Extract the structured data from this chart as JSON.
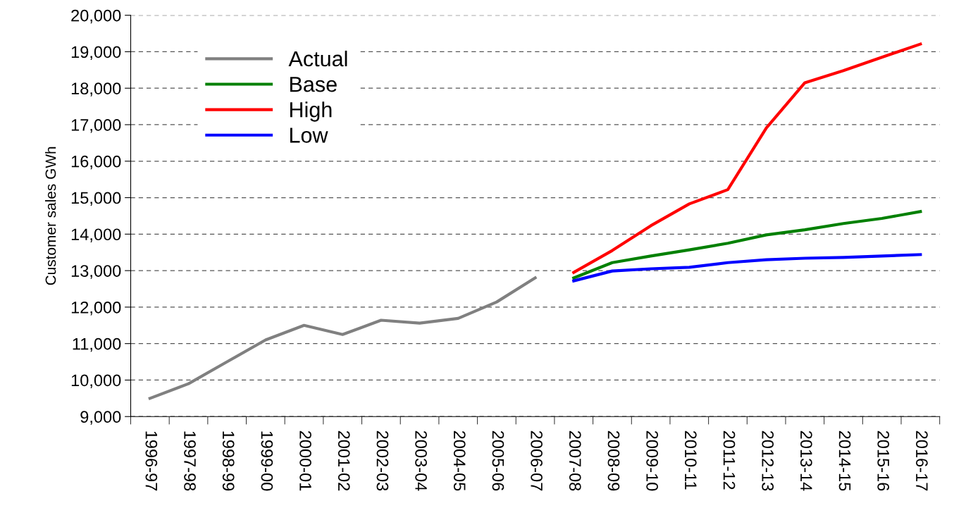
{
  "chart_data": {
    "type": "line",
    "ylabel": "Customer sales GWh",
    "categories": [
      "1996-97",
      "1997-98",
      "1998-99",
      "1999-00",
      "2000-01",
      "2001-02",
      "2002-03",
      "2003-04",
      "2004-05",
      "2005-06",
      "2006-07",
      "2007-08",
      "2008-09",
      "2009-10",
      "2010-11",
      "2011-12",
      "2012-13",
      "2013-14",
      "2014-15",
      "2015-16",
      "2016-17"
    ],
    "series": [
      {
        "name": "Actual",
        "color": "#808080",
        "values": [
          9500,
          9900,
          10500,
          11100,
          11500,
          11250,
          11640,
          11560,
          11690,
          12140,
          12800,
          null,
          null,
          null,
          null,
          null,
          null,
          null,
          null,
          null,
          null
        ]
      },
      {
        "name": "Base",
        "color": "#008000",
        "values": [
          null,
          null,
          null,
          null,
          null,
          null,
          null,
          null,
          null,
          null,
          null,
          12800,
          13220,
          13400,
          13570,
          13750,
          13980,
          14120,
          14290,
          14430,
          14620
        ]
      },
      {
        "name": "High",
        "color": "#ff0000",
        "values": [
          null,
          null,
          null,
          null,
          null,
          null,
          null,
          null,
          null,
          null,
          null,
          12950,
          13550,
          14230,
          14830,
          15220,
          16910,
          18150,
          18480,
          18850,
          19210
        ]
      },
      {
        "name": "Low",
        "color": "#0000ff",
        "values": [
          null,
          null,
          null,
          null,
          null,
          null,
          null,
          null,
          null,
          null,
          null,
          12720,
          12990,
          13050,
          13090,
          13220,
          13300,
          13340,
          13360,
          13400,
          13440
        ]
      }
    ],
    "ylim": [
      9000,
      20000
    ],
    "yticks": [
      {
        "value": 9000,
        "label": "9,000"
      },
      {
        "value": 10000,
        "label": "10,000"
      },
      {
        "value": 11000,
        "label": "11,000"
      },
      {
        "value": 12000,
        "label": "12,000"
      },
      {
        "value": 13000,
        "label": "13,000"
      },
      {
        "value": 14000,
        "label": "14,000"
      },
      {
        "value": 15000,
        "label": "15,000"
      },
      {
        "value": 16000,
        "label": "16,000"
      },
      {
        "value": 17000,
        "label": "17,000"
      },
      {
        "value": 18000,
        "label": "18,000"
      },
      {
        "value": 19000,
        "label": "19,000"
      },
      {
        "value": 20000,
        "label": "20,000"
      }
    ],
    "grid": "y",
    "legend": "top left",
    "marker": "none",
    "line_style": "solid"
  }
}
